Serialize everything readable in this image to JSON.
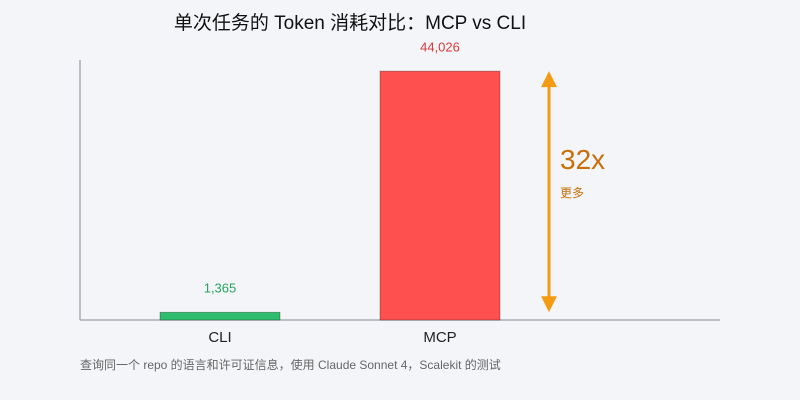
{
  "chart_data": {
    "type": "bar",
    "title": "单次任务的 Token 消耗对比：MCP vs CLI",
    "categories": [
      "CLI",
      "MCP"
    ],
    "values": [
      1365,
      44026
    ],
    "value_labels": [
      "1,365",
      "44,026"
    ],
    "colors": [
      "#2ebd6e",
      "#ff5050"
    ],
    "label_colors": [
      "#27a35e",
      "#d63a3a"
    ],
    "ylim": [
      0,
      46000
    ],
    "annotation": {
      "text": "32x",
      "subtext": "更多",
      "color": "#f39c12",
      "text_color": "#c7700a"
    },
    "footnote": "查询同一个 repo 的语言和许可证信息，使用 Claude Sonnet 4，Scalekit 的测试"
  }
}
